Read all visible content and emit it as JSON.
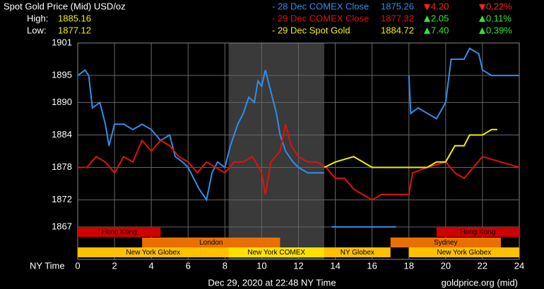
{
  "chart_data": {
    "type": "line",
    "title": "Spot Gold Price (Mid) USD/oz",
    "high_label": "High:",
    "high": 1885.16,
    "low_label": "Low:",
    "low": 1877.12,
    "x_label": "NY Time",
    "footer": "Dec 29, 2020 at 22:48 NY Time",
    "source": "goldprice.org (mid)",
    "xlim": [
      0,
      24
    ],
    "xticks": [
      0,
      2,
      4,
      6,
      8,
      10,
      12,
      14,
      16,
      18,
      20,
      22,
      24
    ],
    "ylim": [
      1861,
      1901
    ],
    "yticks": [
      1867,
      1872,
      1878,
      1884,
      1890,
      1895,
      1901
    ],
    "grid": true,
    "shaded_range": [
      8.2,
      13.4
    ],
    "series": [
      {
        "name": "- 28 Dec COMEX Close",
        "color": "#2f8fe8",
        "last": 1875.26,
        "direction": "down",
        "change": "4.20",
        "pct": "0.22%",
        "x": [
          0,
          0.4,
          0.6,
          0.8,
          1.2,
          1.5,
          1.7,
          2,
          2.5,
          3,
          3.5,
          4,
          4.5,
          5,
          5.3,
          5.7,
          6,
          6.3,
          6.6,
          7,
          7.3,
          7.6,
          8,
          8.3,
          8.7,
          9,
          9.3,
          9.6,
          9.8,
          10,
          10.2,
          10.5,
          10.8,
          11,
          11.3,
          11.7,
          12,
          12.5,
          13,
          13.4,
          13.6,
          13.8,
          17.3,
          17.6,
          18,
          18.1,
          18.5,
          19,
          19.5,
          20,
          20.3,
          21,
          21.3,
          21.8,
          22,
          22.5,
          23,
          24
        ],
        "values": [
          1895,
          1896,
          1895,
          1889,
          1890,
          1886,
          1882,
          1886,
          1886,
          1885,
          1886,
          1885,
          1883,
          1884,
          1880,
          1879,
          1878,
          1876,
          1874,
          1872,
          1877,
          1879,
          1878,
          1882,
          1886,
          1888,
          1891,
          1890,
          1894,
          1893,
          1896,
          1892,
          1888,
          1884,
          1881,
          1879,
          1878,
          1877,
          1877,
          1877,
          null,
          1867,
          1867,
          null,
          1895,
          1888,
          1889,
          1888,
          1887,
          1890,
          1898,
          1898,
          1900,
          1899,
          1896,
          1895,
          1895,
          1895
        ]
      },
      {
        "name": "- 29 Dec COMEX Close",
        "color": "#e01010",
        "last": 1877.32,
        "direction": "up",
        "change": "2.05",
        "pct": "0.11%",
        "x": [
          0,
          0.5,
          1,
          1.5,
          2,
          2.5,
          3,
          3.5,
          4,
          4.5,
          5,
          5.5,
          6,
          6.5,
          7,
          7.5,
          8,
          8.5,
          9,
          9.5,
          10,
          10.2,
          10.5,
          11,
          11.3,
          11.6,
          12,
          12.5,
          13,
          13.5,
          14,
          14.5,
          15,
          15.5,
          16,
          16.5,
          17,
          17.5,
          18,
          18.2,
          19,
          20,
          20.5,
          21,
          21.5,
          22,
          23,
          24
        ],
        "values": [
          1878,
          1878,
          1880,
          1879,
          1877,
          1880,
          1879,
          1883,
          1881,
          1883,
          1882,
          1880,
          1879,
          1877,
          1879,
          1878,
          1877,
          1879,
          1879,
          1880,
          1877,
          1873,
          1879,
          1881,
          1886,
          1882,
          1880,
          1879,
          1879,
          1878,
          1876,
          1876,
          1874,
          1873,
          1872,
          1873,
          1873,
          1873,
          1873,
          1877,
          1878,
          1879,
          1877,
          1876,
          1878,
          1880,
          1879,
          1878
        ]
      },
      {
        "name": "- 29 Dec Spot Gold",
        "color": "#f0f000",
        "last": 1884.72,
        "direction": "up",
        "change": "7.40",
        "pct": "0.39%",
        "x": [
          13.4,
          14,
          15,
          15.5,
          16,
          17,
          18,
          18.5,
          19,
          19.5,
          20,
          20.5,
          21,
          21.3,
          22,
          22.5,
          22.8
        ],
        "values": [
          1878,
          1879,
          1880,
          1879,
          1878,
          1878,
          1878,
          1878,
          1878,
          1879,
          1879,
          1882,
          1882,
          1884,
          1884,
          1885,
          1885
        ]
      }
    ],
    "sessions": [
      {
        "name": "Hong Kong",
        "start": 0,
        "end": 4.5,
        "row": 0,
        "color": "#d00000"
      },
      {
        "name": "Hong Kong",
        "start": 19.5,
        "end": 24,
        "row": 0,
        "color": "#d00000"
      },
      {
        "name": "London",
        "start": 3.5,
        "end": 11,
        "row": 1,
        "color": "#e87000"
      },
      {
        "name": "Sydney",
        "start": 17,
        "end": 23,
        "row": 1,
        "color": "#e87000"
      },
      {
        "name": "New York Globex",
        "start": 0,
        "end": 8.2,
        "row": 2,
        "color": "#ffc000"
      },
      {
        "name": "New York COMEX",
        "start": 8.2,
        "end": 13.4,
        "row": 2,
        "color": "#ffe000"
      },
      {
        "name": "NY Globex",
        "start": 13.4,
        "end": 17,
        "row": 2,
        "color": "#ffc000"
      },
      {
        "name": "New York Globex",
        "start": 18,
        "end": 24,
        "row": 2,
        "color": "#ffc000"
      }
    ]
  }
}
